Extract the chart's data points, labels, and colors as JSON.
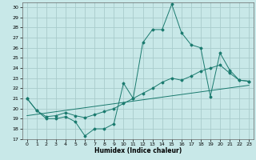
{
  "xlabel": "Humidex (Indice chaleur)",
  "bg_color": "#c8e8e8",
  "line_color": "#1a7a6e",
  "grid_color": "#a8cccc",
  "xlim": [
    -0.5,
    23.5
  ],
  "ylim": [
    17,
    30.5
  ],
  "yticks": [
    17,
    18,
    19,
    20,
    21,
    22,
    23,
    24,
    25,
    26,
    27,
    28,
    29,
    30
  ],
  "xticks": [
    0,
    1,
    2,
    3,
    4,
    5,
    6,
    7,
    8,
    9,
    10,
    11,
    12,
    13,
    14,
    15,
    16,
    17,
    18,
    19,
    20,
    21,
    22,
    23
  ],
  "line1_x": [
    0,
    1,
    2,
    3,
    4,
    5,
    6,
    7,
    8,
    9,
    10,
    11,
    12,
    13,
    14,
    15,
    16,
    17,
    18,
    19,
    20,
    21,
    22,
    23
  ],
  "line1_y": [
    21.0,
    19.8,
    19.0,
    19.0,
    19.2,
    18.7,
    17.3,
    18.0,
    18.0,
    18.5,
    22.5,
    21.0,
    26.5,
    27.8,
    27.8,
    30.3,
    27.5,
    26.3,
    26.0,
    21.2,
    25.5,
    23.8,
    22.8,
    22.7
  ],
  "line2_x": [
    0,
    1,
    2,
    3,
    4,
    5,
    6,
    7,
    8,
    9,
    10,
    11,
    12,
    13,
    14,
    15,
    16,
    17,
    18,
    19,
    20,
    21,
    22,
    23
  ],
  "line2_y": [
    21.0,
    19.8,
    19.2,
    19.3,
    19.6,
    19.3,
    19.1,
    19.4,
    19.7,
    20.0,
    20.5,
    21.0,
    21.5,
    22.0,
    22.6,
    23.0,
    22.8,
    23.2,
    23.7,
    24.0,
    24.3,
    23.5,
    22.8,
    22.7
  ],
  "line3_x": [
    0,
    23
  ],
  "line3_y": [
    19.3,
    22.3
  ]
}
